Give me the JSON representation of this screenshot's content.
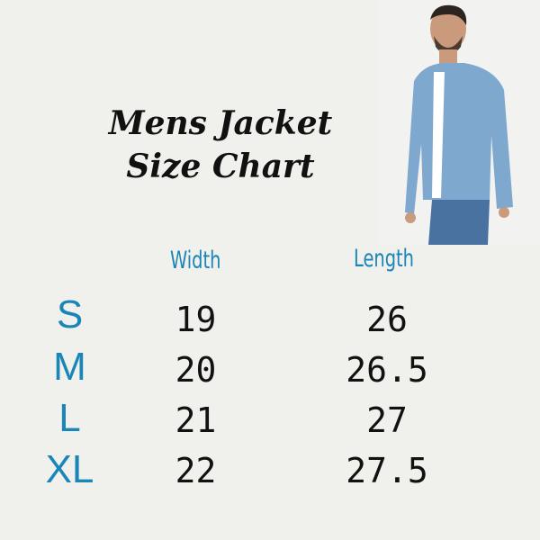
{
  "title": {
    "line1": "Mens Jacket",
    "line2": "Size Chart"
  },
  "headers": {
    "width": "Width",
    "length": "Length"
  },
  "rows": [
    {
      "size": "S",
      "width": "19",
      "length": "26"
    },
    {
      "size": "M",
      "width": "20",
      "length": "26.5"
    },
    {
      "size": "L",
      "width": "21",
      "length": "27"
    },
    {
      "size": "XL",
      "width": "22",
      "length": "27.5"
    }
  ],
  "colors": {
    "accent": "#1a86b8",
    "background": "#f0f0ec",
    "text": "#111111"
  },
  "image": "man-in-denim-jacket-photo"
}
